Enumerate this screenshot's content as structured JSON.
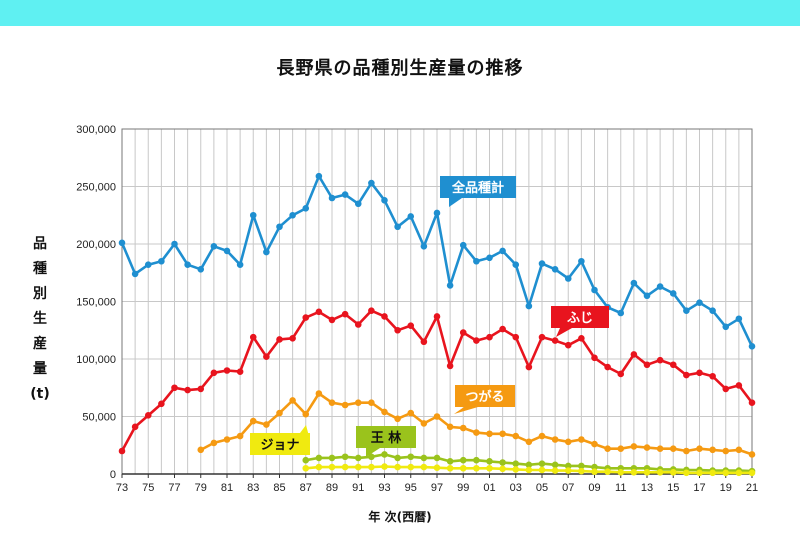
{
  "title": "長野県の品種別生産量の推移",
  "ylabel": "品種別生産量(t)",
  "xlabel": "年 次(西暦)",
  "chart_data": {
    "type": "line",
    "title": "長野県の品種別生産量の推移",
    "xlabel": "年 次(西暦)",
    "ylabel": "品種別生産量(t)",
    "ylim": [
      0,
      300000
    ],
    "yticks": [
      "0",
      "50,000",
      "100,000",
      "150,000",
      "200,000",
      "250,000",
      "300,000"
    ],
    "xticks": [
      "73",
      "75",
      "77",
      "79",
      "81",
      "83",
      "85",
      "87",
      "89",
      "91",
      "93",
      "95",
      "97",
      "99",
      "01",
      "03",
      "05",
      "07",
      "09",
      "11",
      "13",
      "15",
      "17",
      "19",
      "21"
    ],
    "x": [
      "1973",
      "1974",
      "1975",
      "1976",
      "1977",
      "1978",
      "1979",
      "1980",
      "1981",
      "1982",
      "1983",
      "1984",
      "1985",
      "1986",
      "1987",
      "1988",
      "1989",
      "1990",
      "1991",
      "1992",
      "1993",
      "1994",
      "1995",
      "1996",
      "1997",
      "1998",
      "1999",
      "2000",
      "2001",
      "2002",
      "2003",
      "2004",
      "2005",
      "2006",
      "2007",
      "2008",
      "2009",
      "2010",
      "2011",
      "2012",
      "2013",
      "2014",
      "2015",
      "2016",
      "2017",
      "2018",
      "2019",
      "2020",
      "2021"
    ],
    "grid": true,
    "series": [
      {
        "name": "全品種計",
        "color": "#1f8fd0",
        "values": [
          201000,
          174000,
          182000,
          185000,
          200000,
          182000,
          178000,
          198000,
          194000,
          182000,
          225000,
          193000,
          215000,
          225000,
          231000,
          259000,
          240000,
          243000,
          235000,
          253000,
          238000,
          215000,
          224000,
          198000,
          227000,
          164000,
          199000,
          185000,
          188000,
          194000,
          182000,
          146000,
          183000,
          178000,
          170000,
          185000,
          160000,
          145000,
          140000,
          166000,
          155000,
          163000,
          157000,
          142000,
          149000,
          142000,
          128000,
          135000,
          111000
        ]
      },
      {
        "name": "ふじ",
        "color": "#e8141e",
        "values": [
          20000,
          41000,
          51000,
          61000,
          75000,
          73000,
          74000,
          88000,
          90000,
          89000,
          119000,
          102000,
          117000,
          118000,
          136000,
          141000,
          134000,
          139000,
          130000,
          142000,
          137000,
          125000,
          129000,
          115000,
          137000,
          94000,
          123000,
          116000,
          119000,
          126000,
          119000,
          93000,
          119000,
          116000,
          112000,
          118000,
          101000,
          93000,
          87000,
          104000,
          95000,
          99000,
          95000,
          86000,
          88000,
          85000,
          74000,
          77000,
          62000
        ]
      },
      {
        "name": "つがる",
        "color": "#f59a12",
        "values": [
          null,
          null,
          null,
          null,
          null,
          null,
          21000,
          27000,
          30000,
          33000,
          46000,
          43000,
          53000,
          64000,
          52000,
          70000,
          62000,
          60000,
          62000,
          62000,
          54000,
          48000,
          53000,
          44000,
          50000,
          41000,
          40000,
          36000,
          35000,
          35000,
          33000,
          28000,
          33000,
          30000,
          28000,
          30000,
          26000,
          22000,
          22000,
          24000,
          23000,
          22000,
          22000,
          20000,
          22000,
          21000,
          20000,
          21000,
          17000
        ]
      },
      {
        "name": "王 林",
        "color": "#9ac31c",
        "values": [
          null,
          null,
          null,
          null,
          null,
          null,
          null,
          null,
          null,
          null,
          null,
          null,
          null,
          null,
          12000,
          14000,
          14000,
          15000,
          14000,
          15000,
          17000,
          14000,
          15000,
          14000,
          14000,
          11000,
          12000,
          12000,
          11000,
          10000,
          9000,
          8000,
          9000,
          8000,
          7000,
          7000,
          6000,
          5000,
          5000,
          5000,
          5000,
          4000,
          4000,
          3500,
          3500,
          3000,
          3000,
          3000,
          2500
        ]
      },
      {
        "name": "ジョナ",
        "color": "#f0ea10",
        "values": [
          null,
          null,
          null,
          null,
          null,
          null,
          null,
          null,
          null,
          null,
          null,
          null,
          null,
          null,
          5000,
          6000,
          6000,
          6000,
          6000,
          6000,
          6500,
          6000,
          6000,
          6000,
          5500,
          5000,
          5000,
          5000,
          5000,
          4500,
          4000,
          3500,
          3500,
          3000,
          3000,
          2500,
          2000,
          2000,
          1500,
          1500,
          1500,
          1500,
          1500,
          1000,
          1000,
          1000,
          1000,
          1000,
          1000
        ]
      }
    ]
  }
}
